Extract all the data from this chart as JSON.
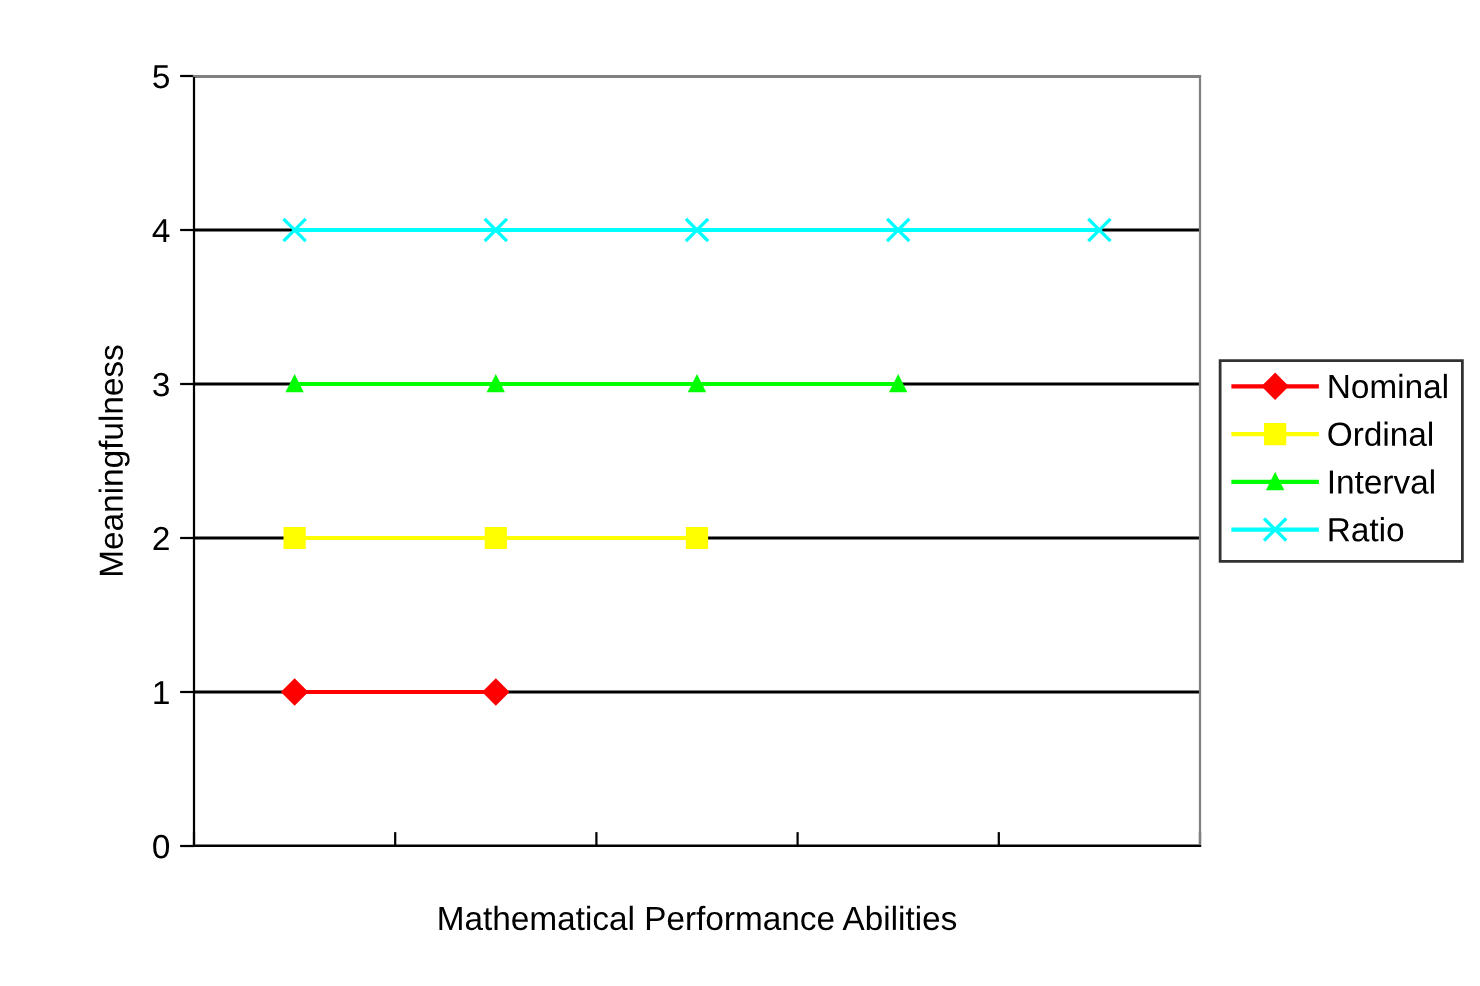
{
  "chart_data": {
    "type": "line",
    "xlabel": "Mathematical Performance Abilities",
    "ylabel": "Meaningfulness",
    "categories": [
      null,
      null,
      null,
      null,
      null
    ],
    "series": [
      {
        "name": "Nominal",
        "color": "#ff0000",
        "marker": "diamond",
        "values": [
          1,
          1,
          null,
          null,
          null
        ]
      },
      {
        "name": "Ordinal",
        "color": "#ffff00",
        "marker": "square",
        "values": [
          2,
          2,
          2,
          null,
          null
        ]
      },
      {
        "name": "Interval",
        "color": "#00ff00",
        "marker": "triangle",
        "values": [
          3,
          3,
          3,
          3,
          null
        ]
      },
      {
        "name": "Ratio",
        "color": "#00ffff",
        "marker": "cross",
        "values": [
          4,
          4,
          4,
          4,
          4
        ]
      }
    ],
    "ylim": [
      0,
      5
    ],
    "yticks": [
      0,
      1,
      2,
      3,
      4,
      5
    ],
    "grid": "y",
    "legend": "right"
  }
}
